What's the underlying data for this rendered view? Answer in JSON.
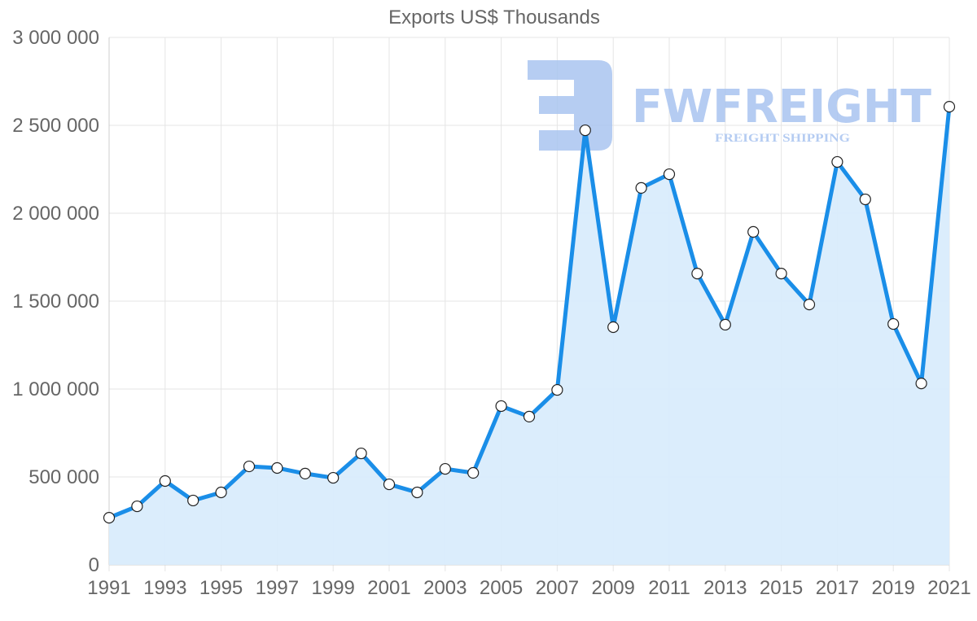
{
  "chart_data": {
    "type": "line",
    "title": "Exports US$ Thousands",
    "xlabel": "",
    "ylabel": "",
    "ylim": [
      0,
      3000000
    ],
    "y_ticks": [
      0,
      500000,
      1000000,
      1500000,
      2000000,
      2500000,
      3000000
    ],
    "y_tick_labels": [
      "0",
      "500 000",
      "1 000 000",
      "1 500 000",
      "2 000 000",
      "2 500 000",
      "3 000 000"
    ],
    "x_tick_labels": [
      "1991",
      "1993",
      "1995",
      "1997",
      "1999",
      "2001",
      "2003",
      "2005",
      "2007",
      "2009",
      "2011",
      "2013",
      "2015",
      "2017",
      "2019",
      "2021"
    ],
    "grid": true,
    "legend": "none",
    "fill": true,
    "categories": [
      "1991",
      "1992",
      "1993",
      "1994",
      "1995",
      "1996",
      "1997",
      "1998",
      "1999",
      "2000",
      "2001",
      "2002",
      "2003",
      "2004",
      "2005",
      "2006",
      "2007",
      "2008",
      "2009",
      "2010",
      "2011",
      "2012",
      "2013",
      "2014",
      "2015",
      "2016",
      "2017",
      "2018",
      "2019",
      "2020",
      "2021"
    ],
    "series": [
      {
        "name": "Exports US$ Thousands",
        "color": "#1a8ee8",
        "fill_color": "#d9ecfc",
        "values": [
          268000,
          333000,
          477000,
          366000,
          412000,
          560000,
          551000,
          519000,
          495000,
          634000,
          458000,
          412000,
          546000,
          523000,
          903000,
          843000,
          995000,
          2472000,
          1352000,
          2144000,
          2222000,
          1657000,
          1366000,
          1894000,
          1657000,
          1481000,
          2292000,
          2079000,
          1370000,
          1032000,
          2606000
        ]
      }
    ]
  },
  "watermark": {
    "brand": "FWFREIGHT",
    "tagline": "FREIGHT SHIPPING",
    "color": "#a9c4f0"
  }
}
